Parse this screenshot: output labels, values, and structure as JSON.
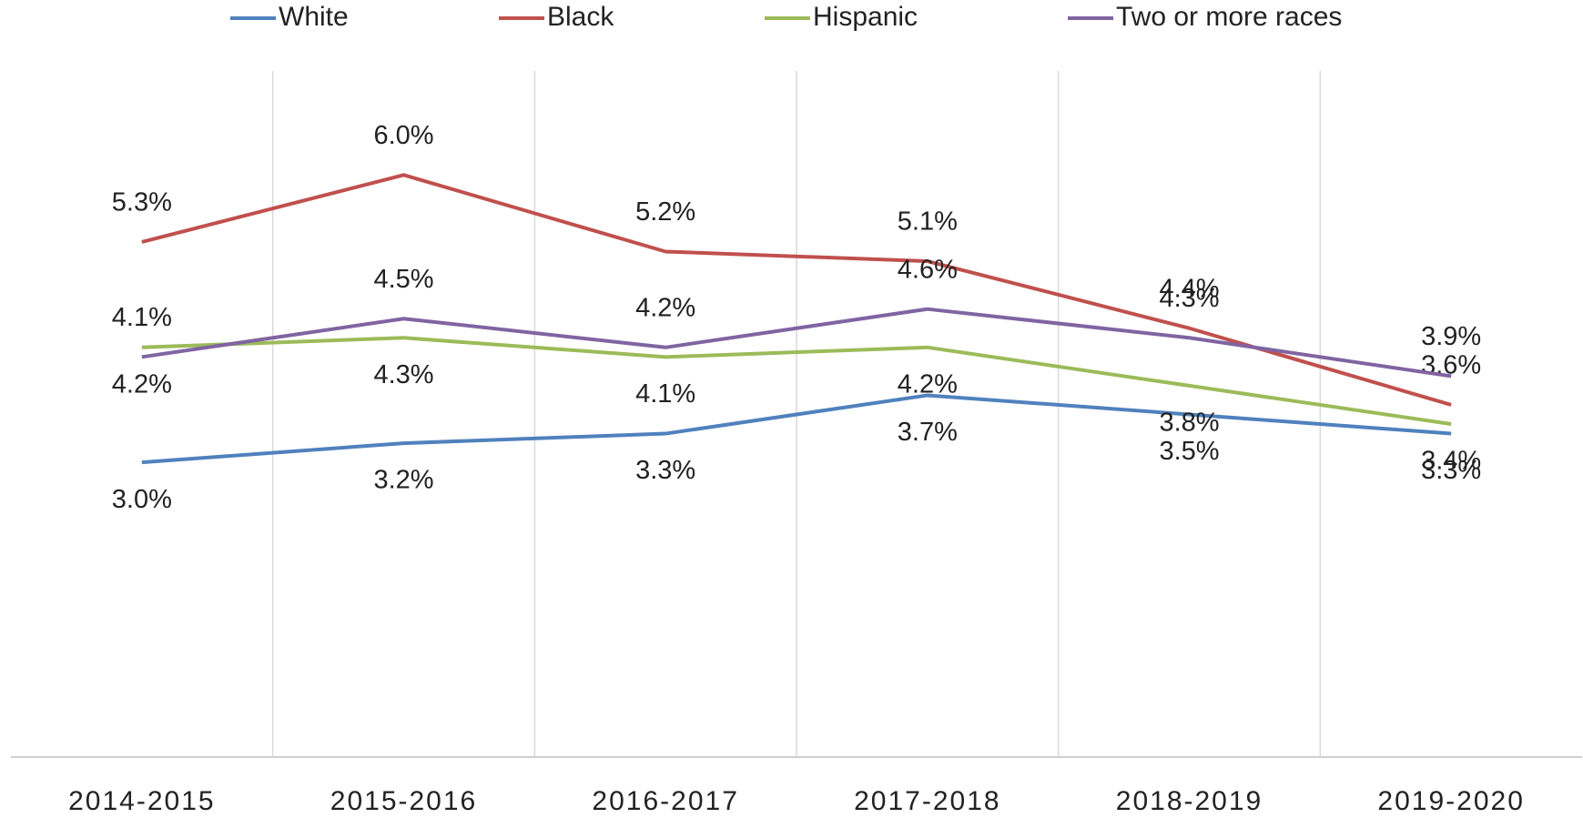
{
  "chart_data": {
    "type": "line",
    "categories": [
      "2014-2015",
      "2015-2016",
      "2016-2017",
      "2017-2018",
      "2018-2019",
      "2019-2020"
    ],
    "ylim": [
      0,
      7
    ],
    "grid": true,
    "legend": "top",
    "series": [
      {
        "name": "White",
        "color": "#4f81bd",
        "values": [
          3.0,
          3.2,
          3.3,
          3.7,
          3.5,
          3.3
        ],
        "value_labels": [
          "3.0%",
          "3.2%",
          "3.3%",
          "3.7%",
          "3.5%",
          "3.3%"
        ]
      },
      {
        "name": "Black",
        "color": "#c0504d",
        "values": [
          5.3,
          6.0,
          5.2,
          5.1,
          4.4,
          3.6
        ],
        "value_labels": [
          "5.3%",
          "6.0%",
          "5.2%",
          "5.1%",
          "4.4%",
          "3.6%"
        ]
      },
      {
        "name": "Hispanic",
        "color": "#9bbb59",
        "values": [
          4.2,
          4.3,
          4.1,
          4.2,
          3.8,
          3.4
        ],
        "value_labels": [
          "4.2%",
          "4.3%",
          "4.1%",
          "4.2%",
          "3.8%",
          "3.4%"
        ]
      },
      {
        "name": "Two or more races",
        "color": "#8064a2",
        "values": [
          4.1,
          4.5,
          4.2,
          4.6,
          4.3,
          3.9
        ],
        "value_labels": [
          "4.1%",
          "4.5%",
          "4.2%",
          "4.6%",
          "4.3%",
          "3.9%"
        ]
      }
    ]
  }
}
